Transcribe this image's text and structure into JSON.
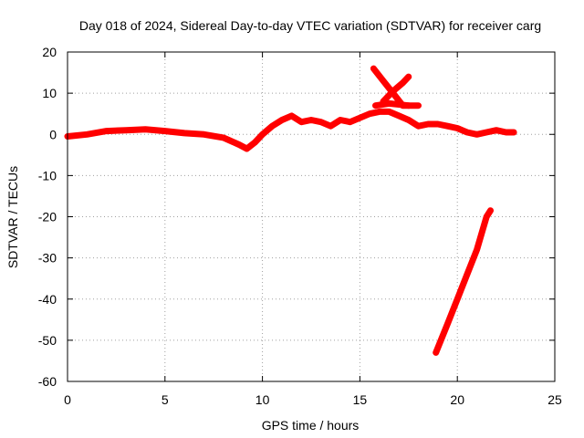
{
  "chart_data": {
    "type": "scatter",
    "title": "Day 018 of 2024, Sidereal Day-to-day VTEC variation (SDTVAR) for receiver carg",
    "xlabel": "GPS time / hours",
    "ylabel": "SDTVAR / TECUs",
    "xlim": [
      0,
      25
    ],
    "ylim": [
      -60,
      20
    ],
    "xticks": [
      "0",
      "5",
      "10",
      "15",
      "20",
      "25"
    ],
    "yticks": [
      "20",
      "10",
      "0",
      "-10",
      "-20",
      "-30",
      "-40",
      "-50",
      "-60"
    ],
    "grid": true,
    "series": [
      {
        "color": "#ff0000",
        "segments": [
          [
            [
              0.0,
              -0.5
            ],
            [
              1.0,
              0.0
            ],
            [
              2.0,
              0.8
            ],
            [
              3.0,
              1.0
            ],
            [
              4.0,
              1.2
            ],
            [
              5.0,
              0.8
            ],
            [
              6.0,
              0.3
            ],
            [
              7.0,
              0.0
            ],
            [
              8.0,
              -0.8
            ],
            [
              8.8,
              -2.5
            ],
            [
              9.2,
              -3.5
            ],
            [
              9.6,
              -2.0
            ],
            [
              10.0,
              0.0
            ],
            [
              10.5,
              2.0
            ],
            [
              11.0,
              3.5
            ],
            [
              11.5,
              4.5
            ],
            [
              12.0,
              3.0
            ],
            [
              12.5,
              3.5
            ],
            [
              13.0,
              3.0
            ],
            [
              13.5,
              2.0
            ],
            [
              14.0,
              3.5
            ],
            [
              14.5,
              3.0
            ],
            [
              15.0,
              4.0
            ],
            [
              15.5,
              5.0
            ],
            [
              16.0,
              5.5
            ],
            [
              16.5,
              5.5
            ],
            [
              17.0,
              4.5
            ],
            [
              17.5,
              3.5
            ],
            [
              18.0,
              2.0
            ],
            [
              18.5,
              2.5
            ],
            [
              19.0,
              2.5
            ],
            [
              19.5,
              2.0
            ],
            [
              20.0,
              1.5
            ],
            [
              20.5,
              0.5
            ],
            [
              21.0,
              0.0
            ],
            [
              21.5,
              0.5
            ],
            [
              22.0,
              1.0
            ],
            [
              22.5,
              0.5
            ],
            [
              22.9,
              0.5
            ]
          ],
          [
            [
              15.7,
              16.0
            ],
            [
              16.2,
              13.0
            ],
            [
              16.7,
              10.0
            ],
            [
              17.2,
              7.0
            ],
            [
              18.0,
              7.0
            ]
          ],
          [
            [
              16.2,
              8.0
            ],
            [
              16.7,
              10.5
            ],
            [
              17.2,
              12.5
            ],
            [
              17.5,
              14.0
            ]
          ],
          [
            [
              15.8,
              7.0
            ],
            [
              16.5,
              7.5
            ],
            [
              17.5,
              7.0
            ]
          ],
          [
            [
              18.9,
              -53.0
            ],
            [
              19.5,
              -46.0
            ],
            [
              20.0,
              -40.0
            ],
            [
              20.5,
              -34.0
            ],
            [
              21.0,
              -28.0
            ],
            [
              21.5,
              -20.0
            ],
            [
              21.7,
              -18.5
            ]
          ]
        ]
      }
    ]
  }
}
